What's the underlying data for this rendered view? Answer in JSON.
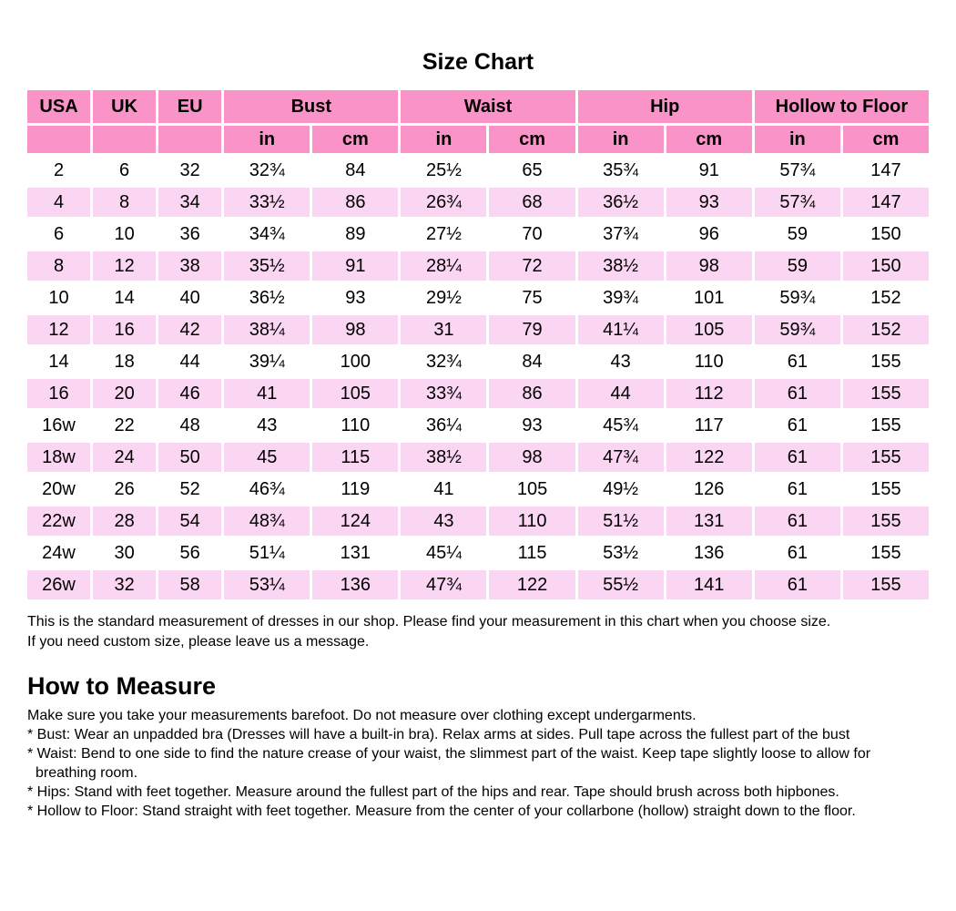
{
  "title": "Size Chart",
  "colors": {
    "header_pink": "#FA94C8",
    "row_pink": "#FAD6F2",
    "background": "#FFFFFF",
    "text": "#000000"
  },
  "table": {
    "groups": [
      {
        "label": "USA"
      },
      {
        "label": "UK"
      },
      {
        "label": "EU"
      },
      {
        "label": "Bust",
        "sub": [
          "in",
          "cm"
        ]
      },
      {
        "label": "Waist",
        "sub": [
          "in",
          "cm"
        ]
      },
      {
        "label": "Hip",
        "sub": [
          "in",
          "cm"
        ]
      },
      {
        "label": "Hollow to Floor",
        "sub": [
          "in",
          "cm"
        ]
      }
    ],
    "rows": [
      [
        "2",
        "6",
        "32",
        "32¾",
        "84",
        "25½",
        "65",
        "35¾",
        "91",
        "57¾",
        "147"
      ],
      [
        "4",
        "8",
        "34",
        "33½",
        "86",
        "26¾",
        "68",
        "36½",
        "93",
        "57¾",
        "147"
      ],
      [
        "6",
        "10",
        "36",
        "34¾",
        "89",
        "27½",
        "70",
        "37¾",
        "96",
        "59",
        "150"
      ],
      [
        "8",
        "12",
        "38",
        "35½",
        "91",
        "28¼",
        "72",
        "38½",
        "98",
        "59",
        "150"
      ],
      [
        "10",
        "14",
        "40",
        "36½",
        "93",
        "29½",
        "75",
        "39¾",
        "101",
        "59¾",
        "152"
      ],
      [
        "12",
        "16",
        "42",
        "38¼",
        "98",
        "31",
        "79",
        "41¼",
        "105",
        "59¾",
        "152"
      ],
      [
        "14",
        "18",
        "44",
        "39¼",
        "100",
        "32¾",
        "84",
        "43",
        "110",
        "61",
        "155"
      ],
      [
        "16",
        "20",
        "46",
        "41",
        "105",
        "33¾",
        "86",
        "44",
        "112",
        "61",
        "155"
      ],
      [
        "16w",
        "22",
        "48",
        "43",
        "110",
        "36¼",
        "93",
        "45¾",
        "117",
        "61",
        "155"
      ],
      [
        "18w",
        "24",
        "50",
        "45",
        "115",
        "38½",
        "98",
        "47¾",
        "122",
        "61",
        "155"
      ],
      [
        "20w",
        "26",
        "52",
        "46¾",
        "119",
        "41",
        "105",
        "49½",
        "126",
        "61",
        "155"
      ],
      [
        "22w",
        "28",
        "54",
        "48¾",
        "124",
        "43",
        "110",
        "51½",
        "131",
        "61",
        "155"
      ],
      [
        "24w",
        "30",
        "56",
        "51¼",
        "131",
        "45¼",
        "115",
        "53½",
        "136",
        "61",
        "155"
      ],
      [
        "26w",
        "32",
        "58",
        "53¼",
        "136",
        "47¾",
        "122",
        "55½",
        "141",
        "61",
        "155"
      ]
    ]
  },
  "notes": [
    "This is the standard measurement of dresses in our shop. Please find your measurement in this chart when you choose size.",
    "If you need custom size, please leave us a message."
  ],
  "how_to_measure": {
    "heading": "How to Measure",
    "lines": [
      {
        "text": "Make sure you take your measurements barefoot. Do not measure over clothing except undergarments.",
        "indent": false
      },
      {
        "text": "* Bust: Wear an unpadded bra (Dresses will have a built-in bra). Relax arms at sides. Pull tape across the fullest part of the bust",
        "indent": false
      },
      {
        "text": "* Waist: Bend to one side to find the nature crease of your waist, the slimmest part of the waist. Keep tape slightly loose to allow for",
        "indent": false
      },
      {
        "text": "breathing room.",
        "indent": true
      },
      {
        "text": "* Hips: Stand with feet together. Measure around the fullest part of the hips and rear. Tape should brush across both hipbones.",
        "indent": false
      },
      {
        "text": "* Hollow to Floor: Stand straight with feet together. Measure from the center of your collarbone (hollow) straight down to the floor.",
        "indent": false
      }
    ]
  }
}
